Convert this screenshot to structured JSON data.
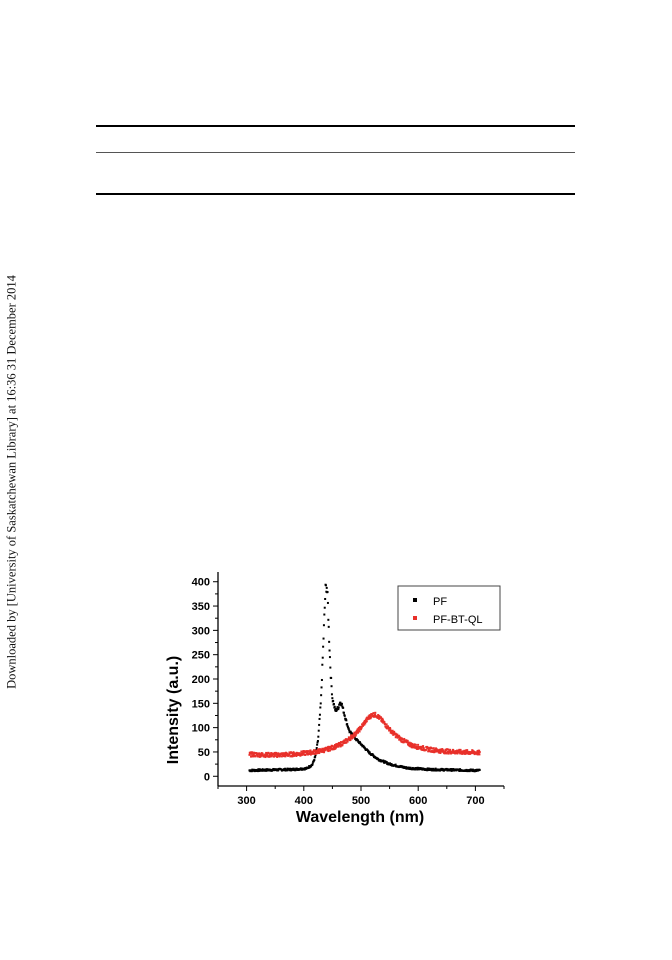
{
  "page": {
    "side_note": "Downloaded by [University of Saskatchewan Library] at 16:36 31 December 2014"
  },
  "chart_data": {
    "type": "scatter",
    "title": "",
    "xlabel": "Wavelength (nm)",
    "ylabel": "Intensity (a.u.)",
    "xlim": [
      250,
      750
    ],
    "ylim": [
      -20,
      420
    ],
    "xticks": [
      300,
      400,
      500,
      600,
      700
    ],
    "yticks": [
      0,
      50,
      100,
      150,
      200,
      250,
      300,
      350,
      400
    ],
    "grid": false,
    "legend_position": "top-right",
    "series": [
      {
        "name": "PF",
        "color": "#000000",
        "points": [
          [
            305,
            12
          ],
          [
            340,
            13
          ],
          [
            380,
            14
          ],
          [
            405,
            16
          ],
          [
            415,
            24
          ],
          [
            420,
            40
          ],
          [
            425,
            75
          ],
          [
            430,
            155
          ],
          [
            433,
            240
          ],
          [
            436,
            330
          ],
          [
            438,
            385
          ],
          [
            440,
            392
          ],
          [
            442,
            360
          ],
          [
            444,
            290
          ],
          [
            447,
            210
          ],
          [
            450,
            160
          ],
          [
            455,
            135
          ],
          [
            460,
            140
          ],
          [
            463,
            152
          ],
          [
            466,
            150
          ],
          [
            470,
            132
          ],
          [
            475,
            110
          ],
          [
            480,
            92
          ],
          [
            488,
            80
          ],
          [
            495,
            72
          ],
          [
            505,
            60
          ],
          [
            515,
            48
          ],
          [
            530,
            35
          ],
          [
            550,
            25
          ],
          [
            580,
            17
          ],
          [
            620,
            14
          ],
          [
            660,
            13
          ],
          [
            700,
            12
          ],
          [
            708,
            12
          ]
        ]
      },
      {
        "name": "PF-BT-QL",
        "color": "#e8302a",
        "points": [
          [
            305,
            45
          ],
          [
            330,
            44
          ],
          [
            360,
            44
          ],
          [
            390,
            46
          ],
          [
            420,
            50
          ],
          [
            440,
            55
          ],
          [
            460,
            63
          ],
          [
            475,
            73
          ],
          [
            488,
            85
          ],
          [
            498,
            97
          ],
          [
            506,
            110
          ],
          [
            513,
            120
          ],
          [
            520,
            127
          ],
          [
            527,
            126
          ],
          [
            535,
            117
          ],
          [
            545,
            103
          ],
          [
            555,
            90
          ],
          [
            570,
            76
          ],
          [
            590,
            63
          ],
          [
            615,
            56
          ],
          [
            640,
            52
          ],
          [
            670,
            50
          ],
          [
            700,
            49
          ],
          [
            708,
            48
          ]
        ]
      }
    ]
  }
}
